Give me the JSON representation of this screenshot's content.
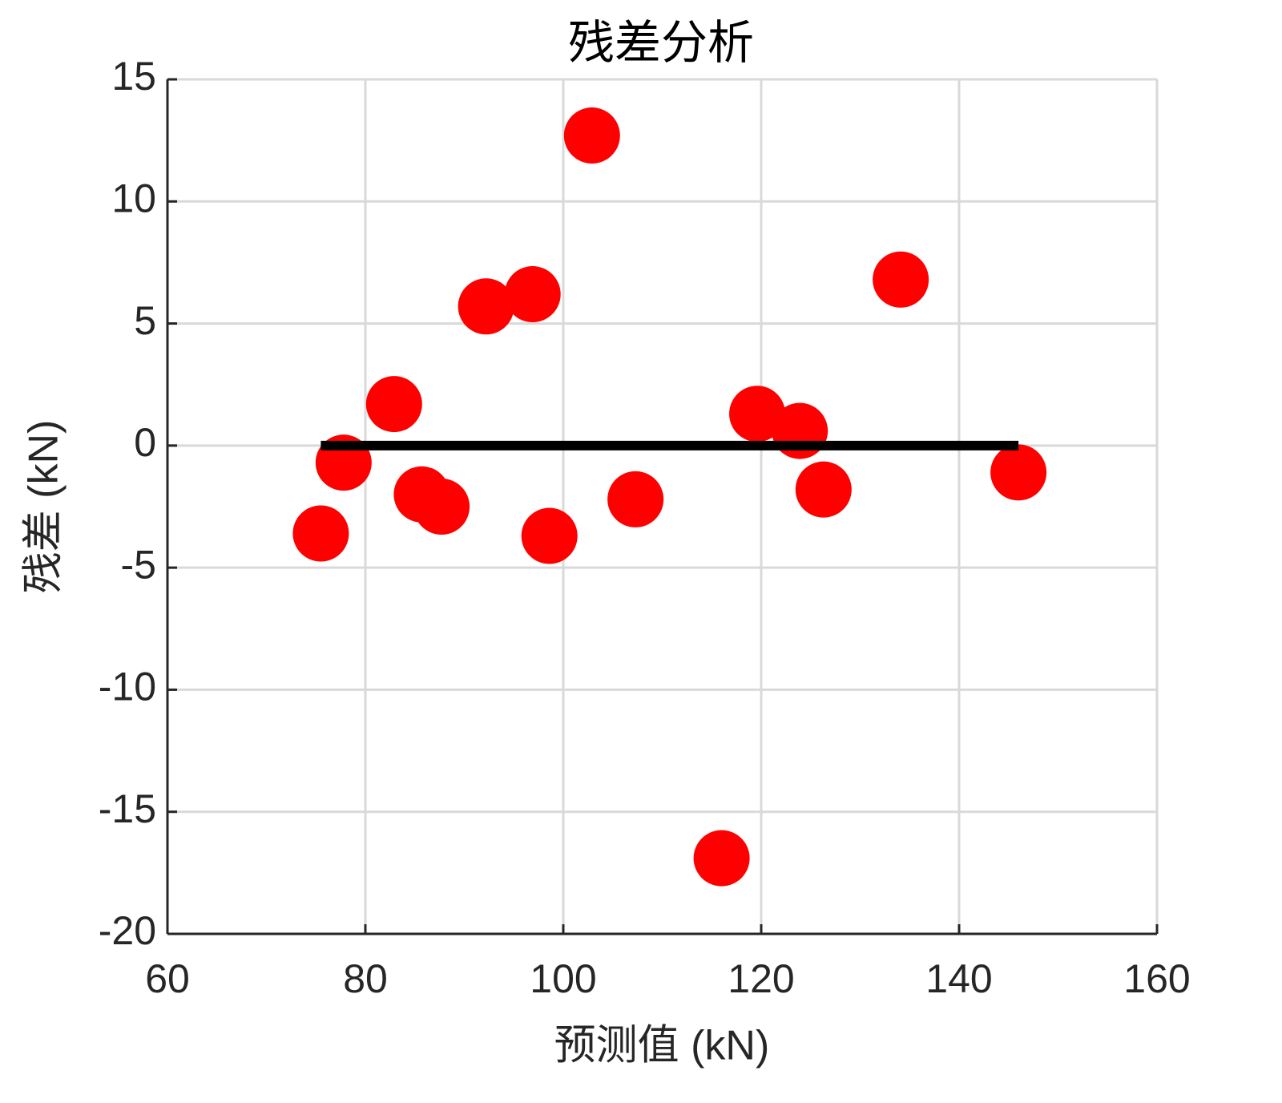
{
  "chart_data": {
    "type": "scatter",
    "title": "残差分析",
    "x_label": "预测值 (kN)",
    "y_label": "残差 (kN)",
    "x": [
      75.5,
      77.8,
      82.9,
      85.7,
      87.7,
      92.2,
      96.9,
      98.6,
      102.9,
      107.3,
      116.0,
      119.6,
      123.9,
      126.3,
      134.1,
      146.0
    ],
    "values": [
      -3.6,
      -0.7,
      1.7,
      -2.0,
      -2.5,
      5.7,
      6.2,
      -3.7,
      12.7,
      -2.2,
      -16.9,
      1.3,
      0.6,
      -1.8,
      6.8,
      -1.1
    ],
    "color": "#ff0000",
    "reference_line": {
      "x": [
        75.5,
        146.0
      ],
      "values": [
        0,
        0
      ],
      "color": "#000000"
    },
    "xlim": [
      60,
      160
    ],
    "xticks": [
      60,
      80,
      100,
      120,
      140,
      160
    ],
    "ylim": [
      -20,
      15
    ],
    "yticks": [
      -20,
      -15,
      -10,
      -5,
      0,
      5,
      10,
      15
    ],
    "grid": true
  }
}
